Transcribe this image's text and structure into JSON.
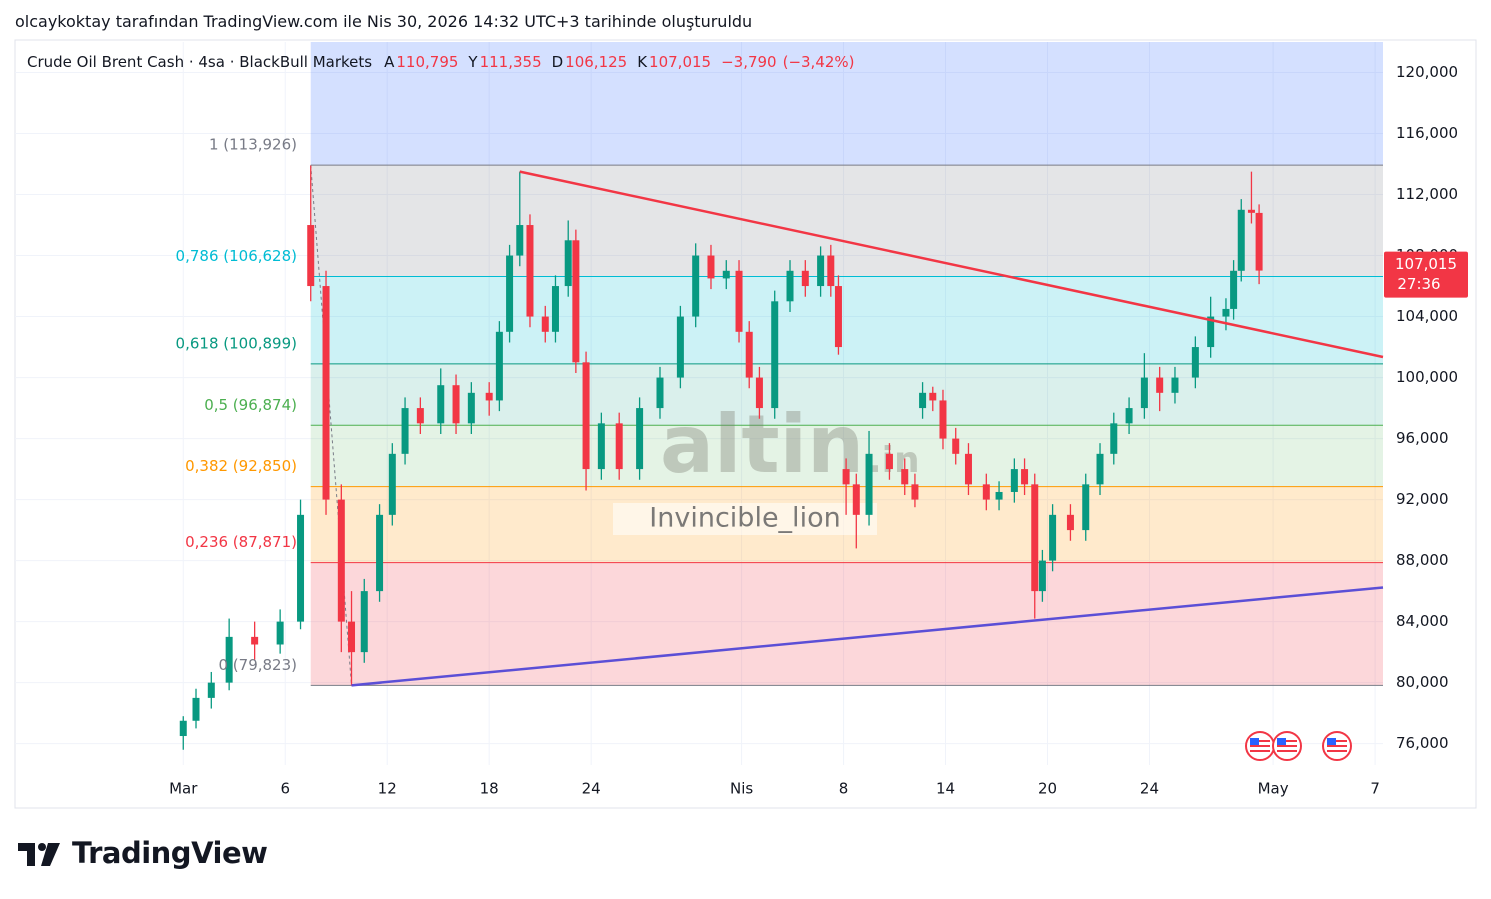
{
  "caption": "olcaykoktay tarafından TradingView.com ile Nis 30, 2026 14:32 UTC+3 tarihinde oluşturuldu",
  "chart_data": {
    "type": "candlestick",
    "title": "Crude Oil Brent Cash · 4sa · BlackBull Markets",
    "ohlc": [
      {
        "key": "A",
        "value": 110.795,
        "label": "110,795"
      },
      {
        "key": "Y",
        "value": 111.355,
        "label": "111,355"
      },
      {
        "key": "D",
        "value": 106.125,
        "label": "106,125"
      },
      {
        "key": "K",
        "value": 107.015,
        "label": "107,015"
      }
    ],
    "change": {
      "value": -3.79,
      "label": "−3,790"
    },
    "change_pct": {
      "value": -3.42,
      "label": "(−3,42%)"
    },
    "up_color": "#089981",
    "down_color": "#f23645",
    "x": [
      0,
      0.5,
      1.1,
      1.8,
      2.8,
      3.8,
      4.6,
      5.0,
      5.6,
      6.2,
      6.6,
      7.1,
      7.7,
      8.2,
      8.7,
      9.3,
      10.1,
      10.7,
      11.3,
      12.0,
      12.4,
      12.8,
      13.2,
      13.6,
      14.2,
      14.6,
      15.1,
      15.4,
      15.8,
      16.4,
      17.1,
      17.9,
      18.7,
      19.5,
      20.1,
      20.7,
      21.3,
      21.8,
      22.2,
      22.6,
      23.2,
      23.8,
      24.4,
      25.0,
      25.4,
      25.7,
      26.0,
      26.4,
      26.9,
      27.7,
      28.3,
      28.7,
      29.0,
      29.4,
      29.8,
      30.3,
      30.8,
      31.5,
      32.0,
      32.6,
      33.0,
      33.4,
      33.7,
      34.1,
      34.8,
      35.4,
      35.96,
      36.5,
      37.1,
      37.7,
      38.3,
      38.9,
      39.7,
      40.3,
      40.9,
      41.2,
      41.5,
      41.9,
      42.2
    ],
    "open": [
      76.5,
      77.5,
      79,
      80,
      83,
      82.5,
      84,
      110,
      106,
      92,
      84,
      82,
      86,
      91,
      95,
      98,
      97,
      99.5,
      97,
      99,
      98.5,
      103,
      108,
      110,
      104,
      103,
      106,
      109,
      101,
      94,
      97,
      94,
      98,
      100,
      104,
      108,
      106.5,
      107,
      103,
      100,
      98,
      105,
      107,
      106,
      108,
      106,
      94,
      93,
      91,
      95,
      94,
      93,
      98,
      99,
      98.5,
      96,
      95,
      93,
      92,
      92.5,
      94,
      93,
      86,
      88,
      91,
      90,
      93,
      95,
      97,
      98,
      100,
      99,
      100,
      102,
      104,
      104.5,
      107,
      111,
      110.795
    ],
    "high": [
      77.8,
      79.6,
      80.7,
      84.2,
      84.0,
      84.8,
      92.0,
      113.9,
      107,
      93,
      86,
      86.8,
      91.7,
      95.7,
      98.7,
      98.7,
      100.6,
      100.2,
      99.7,
      99.7,
      103.7,
      108.7,
      113.5,
      110.7,
      104.7,
      106.7,
      110.3,
      109.7,
      101.7,
      97.7,
      97.7,
      98.7,
      100.7,
      104.7,
      108.8,
      108.7,
      107.7,
      107.7,
      103.7,
      100.7,
      105.7,
      107.7,
      107.7,
      108.6,
      108.7,
      106.7,
      94.7,
      93.7,
      96.5,
      95.7,
      94.7,
      93.7,
      99.7,
      99.4,
      99.2,
      96.7,
      95.7,
      93.7,
      93.2,
      94.7,
      94.7,
      93.7,
      88.7,
      91.7,
      91.7,
      93.7,
      95.7,
      97.7,
      98.7,
      101.6,
      100.7,
      100.7,
      102.7,
      105.3,
      105.2,
      107.7,
      111.7,
      113.5,
      111.355
    ],
    "low": [
      75.6,
      77.0,
      78.3,
      79.5,
      81.5,
      81.9,
      83.5,
      105,
      91,
      82,
      79.8,
      81.3,
      85.3,
      90.3,
      94.3,
      96.3,
      96.3,
      96.3,
      96.3,
      97.5,
      97.8,
      102.3,
      107.3,
      103.3,
      102.3,
      102.3,
      105.3,
      100.3,
      92.6,
      93.3,
      93.3,
      93.3,
      97.3,
      99.3,
      103.3,
      105.8,
      105.8,
      102.3,
      99.3,
      97.3,
      97.3,
      104.3,
      105.3,
      105.3,
      105.3,
      101.5,
      91,
      88.8,
      90.3,
      93.3,
      92.3,
      91.5,
      97.3,
      97.8,
      95.3,
      94.3,
      92.3,
      91.3,
      91.3,
      91.8,
      92.3,
      84.2,
      85.3,
      87.3,
      89.3,
      89.3,
      92.3,
      94.3,
      96.3,
      97.3,
      97.8,
      98.3,
      99.3,
      101.3,
      103.1,
      103.8,
      106.3,
      110.1,
      106.125
    ],
    "close": [
      77.5,
      79,
      80,
      83,
      82.5,
      84,
      91,
      106,
      92,
      84,
      82,
      86,
      91,
      95,
      98,
      97,
      99.5,
      97,
      99,
      98.5,
      103,
      108,
      110,
      104,
      103,
      106,
      109,
      101,
      94,
      97,
      94,
      98,
      100,
      104,
      108,
      106.5,
      107,
      103,
      100,
      98,
      105,
      107,
      106,
      108,
      106,
      102,
      93,
      91,
      95,
      94,
      93,
      92,
      99,
      98.5,
      96,
      95,
      93,
      92,
      92.5,
      94,
      93,
      86,
      88,
      91,
      90,
      93,
      95,
      97,
      98,
      100,
      99,
      100,
      102,
      104,
      104.5,
      107,
      111,
      110.8,
      107.015
    ],
    "xlim": [
      -6.6,
      47.06
    ],
    "xticks": [
      {
        "value": 0,
        "label": "Mar"
      },
      {
        "value": 4,
        "label": "6"
      },
      {
        "value": 8,
        "label": "12"
      },
      {
        "value": 12,
        "label": "18"
      },
      {
        "value": 16,
        "label": "24"
      },
      {
        "value": 21.9,
        "label": "Nis"
      },
      {
        "value": 25.9,
        "label": "8"
      },
      {
        "value": 29.9,
        "label": "14"
      },
      {
        "value": 33.9,
        "label": "20"
      },
      {
        "value": 37.9,
        "label": "24"
      },
      {
        "value": 42.75,
        "label": "May"
      },
      {
        "value": 46.75,
        "label": "7"
      }
    ],
    "ylim": [
      74.6,
      122.0
    ],
    "yticks": [
      {
        "value": 76,
        "label": "76,000"
      },
      {
        "value": 80,
        "label": "80,000"
      },
      {
        "value": 84,
        "label": "84,000"
      },
      {
        "value": 88,
        "label": "88,000"
      },
      {
        "value": 92,
        "label": "92,000"
      },
      {
        "value": 96,
        "label": "96,000"
      },
      {
        "value": 100,
        "label": "100,000"
      },
      {
        "value": 104,
        "label": "104,000"
      },
      {
        "value": 108,
        "label": "108,000"
      },
      {
        "value": 112,
        "label": "112,000"
      },
      {
        "value": 116,
        "label": "116,000"
      },
      {
        "value": 120,
        "label": "120,000"
      }
    ],
    "grid": true,
    "fib": {
      "anchors_x": [
        5.0,
        6.6
      ],
      "top_fill": "rgba(41,98,255,0.2)",
      "levels": [
        {
          "label": "1 (113,926)",
          "value": 113.926,
          "color": "#787b86",
          "fill": "rgba(120,123,134,0.2)"
        },
        {
          "label": "0,786 (106,628)",
          "value": 106.628,
          "color": "#00bcd4",
          "fill": "rgba(0,188,212,0.2)"
        },
        {
          "label": "0,618 (100,899)",
          "value": 100.899,
          "color": "#089981",
          "fill": "rgba(8,153,129,0.15)"
        },
        {
          "label": "0,5 (96,874)",
          "value": 96.874,
          "color": "#4caf50",
          "fill": "rgba(76,175,80,0.15)"
        },
        {
          "label": "0,382 (92,850)",
          "value": 92.85,
          "color": "#ff9800",
          "fill": "rgba(255,152,0,0.2)"
        },
        {
          "label": "0,236 (87,871)",
          "value": 87.871,
          "color": "#f23645",
          "fill": "rgba(242,54,69,0.2)"
        },
        {
          "label": "0 (79,823)",
          "value": 79.823,
          "color": "#787b86",
          "fill": "none"
        }
      ]
    },
    "trendlines": [
      {
        "color": "#f23645",
        "x": [
          13.2,
          47.06
        ],
        "y": [
          113.5,
          101.35
        ]
      },
      {
        "color": "#5b4fd6",
        "x": [
          6.6,
          47.06
        ],
        "y": [
          79.823,
          86.24
        ]
      }
    ],
    "price_tag": {
      "value": 107.015,
      "label": "107,015",
      "countdown": "27:36",
      "color": "#f23645"
    },
    "watermark": {
      "logo": "altin",
      "logo_suffix": ".in",
      "author": "Invincible_lion"
    }
  },
  "brand": "TradingView"
}
